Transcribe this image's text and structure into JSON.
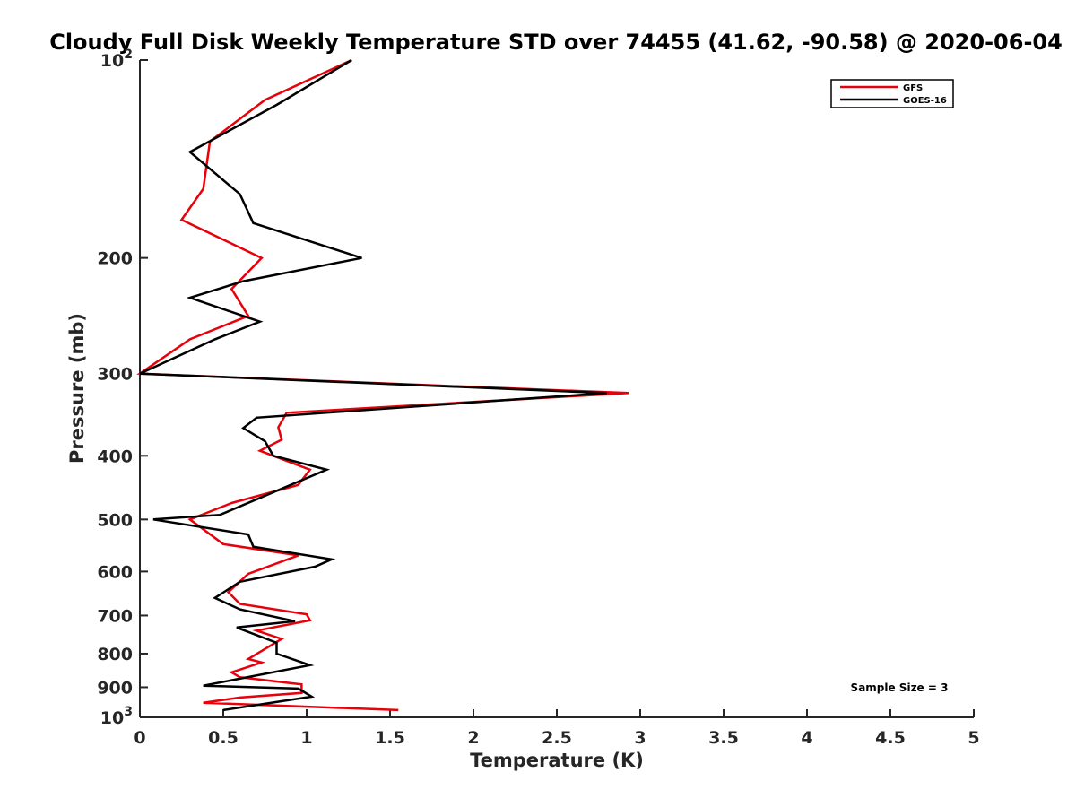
{
  "chart_data": {
    "type": "line",
    "title": "Cloudy Full Disk Weekly Temperature STD over 74455 (41.62, -90.58) @ 2020-06-04",
    "xlabel": "Temperature (K)",
    "ylabel": "Pressure (mb)",
    "xlim": [
      0,
      5
    ],
    "ylim": [
      100,
      1000
    ],
    "y_scale": "log",
    "y_reversed": true,
    "grid": false,
    "legend_position": "top-right",
    "x_ticks": [
      0,
      0.5,
      1,
      1.5,
      2,
      2.5,
      3,
      3.5,
      4,
      4.5,
      5
    ],
    "x_tick_labels": [
      "0",
      "0.5",
      "1",
      "1.5",
      "2",
      "2.5",
      "3",
      "3.5",
      "4",
      "4.5",
      "5"
    ],
    "y_ticks": [
      100,
      200,
      300,
      400,
      500,
      600,
      700,
      800,
      900,
      1000
    ],
    "y_tick_labels": [
      {
        "base": "10",
        "exp": "2"
      },
      {
        "base": "200",
        "exp": ""
      },
      {
        "base": "300",
        "exp": ""
      },
      {
        "base": "400",
        "exp": ""
      },
      {
        "base": "500",
        "exp": ""
      },
      {
        "base": "600",
        "exp": ""
      },
      {
        "base": "700",
        "exp": ""
      },
      {
        "base": "800",
        "exp": ""
      },
      {
        "base": "900",
        "exp": ""
      },
      {
        "base": "10",
        "exp": "3"
      }
    ],
    "annotation": "Sample Size = 3",
    "series": [
      {
        "name": "GFS",
        "color": "#e8000b",
        "points": [
          [
            1.27,
            100
          ],
          [
            0.75,
            115
          ],
          [
            0.42,
            133
          ],
          [
            0.38,
            157
          ],
          [
            0.25,
            175
          ],
          [
            0.73,
            200
          ],
          [
            0.55,
            223
          ],
          [
            0.65,
            245
          ],
          [
            0.3,
            266
          ],
          [
            0.0,
            300
          ],
          [
            2.93,
            321
          ],
          [
            0.88,
            344
          ],
          [
            0.83,
            362
          ],
          [
            0.85,
            378
          ],
          [
            0.72,
            393
          ],
          [
            1.02,
            420
          ],
          [
            0.95,
            443
          ],
          [
            0.55,
            472
          ],
          [
            0.3,
            500
          ],
          [
            0.5,
            545
          ],
          [
            0.95,
            567
          ],
          [
            0.65,
            605
          ],
          [
            0.53,
            645
          ],
          [
            0.6,
            672
          ],
          [
            1.0,
            697
          ],
          [
            1.02,
            712
          ],
          [
            0.7,
            738
          ],
          [
            0.85,
            760
          ],
          [
            0.65,
            815
          ],
          [
            0.73,
            825
          ],
          [
            0.55,
            854
          ],
          [
            0.6,
            869
          ],
          [
            0.97,
            891
          ],
          [
            0.97,
            918
          ],
          [
            0.6,
            933
          ],
          [
            0.38,
            950
          ],
          [
            0.6,
            955
          ],
          [
            1.55,
            975
          ]
        ]
      },
      {
        "name": "GOES-16",
        "color": "#000000",
        "points": [
          [
            1.27,
            100
          ],
          [
            0.82,
            117
          ],
          [
            0.3,
            138
          ],
          [
            0.6,
            160
          ],
          [
            0.68,
            177
          ],
          [
            1.33,
            200
          ],
          [
            0.62,
            217
          ],
          [
            0.3,
            230
          ],
          [
            0.72,
            250
          ],
          [
            0.45,
            266
          ],
          [
            0.0,
            300
          ],
          [
            2.8,
            321
          ],
          [
            0.7,
            350
          ],
          [
            0.62,
            363
          ],
          [
            0.75,
            380
          ],
          [
            0.8,
            400
          ],
          [
            1.12,
            420
          ],
          [
            0.48,
            492
          ],
          [
            0.08,
            500
          ],
          [
            0.65,
            527
          ],
          [
            0.68,
            550
          ],
          [
            1.15,
            575
          ],
          [
            1.05,
            590
          ],
          [
            0.6,
            622
          ],
          [
            0.45,
            658
          ],
          [
            0.6,
            685
          ],
          [
            0.93,
            714
          ],
          [
            0.58,
            730
          ],
          [
            0.82,
            770
          ],
          [
            0.82,
            800
          ],
          [
            1.02,
            833
          ],
          [
            0.38,
            895
          ],
          [
            0.95,
            904
          ],
          [
            1.03,
            930
          ],
          [
            0.5,
            975
          ]
        ]
      }
    ]
  }
}
